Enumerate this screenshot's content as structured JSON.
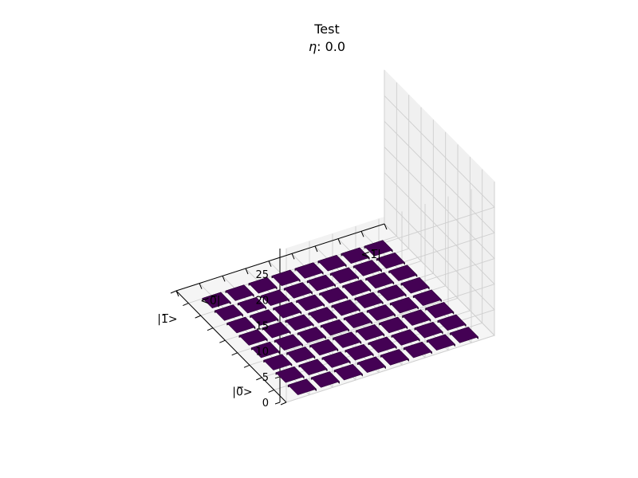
{
  "chart_data": {
    "type": "bar3d",
    "title": "Test",
    "subtitle_symbol": "η",
    "subtitle_rest": ": 0.0",
    "z_ticks": [
      "0",
      "5",
      "10",
      "15",
      "20",
      "25"
    ],
    "zlim": [
      0,
      28
    ],
    "row_labels": [
      "|0̅>",
      "|1̅>"
    ],
    "col_labels": [
      "<0̅|",
      "<1̅|"
    ],
    "grid": true,
    "colormap": "viridis",
    "bar_color": "#440154",
    "bar_value": 0.4,
    "matrix_size": 8,
    "bars": [
      {
        "row": 0,
        "col": 0,
        "z": 0.4
      },
      {
        "row": 0,
        "col": 1,
        "z": 0.4
      },
      {
        "row": 0,
        "col": 2,
        "z": 0.4
      },
      {
        "row": 0,
        "col": 3,
        "z": 0.4
      },
      {
        "row": 0,
        "col": 4,
        "z": 0.4
      },
      {
        "row": 0,
        "col": 5,
        "z": 0.4
      },
      {
        "row": 0,
        "col": 6,
        "z": 0.4
      },
      {
        "row": 0,
        "col": 7,
        "z": 0.4
      },
      {
        "row": 1,
        "col": 0,
        "z": 0.4
      },
      {
        "row": 1,
        "col": 1,
        "z": 0.4
      },
      {
        "row": 1,
        "col": 2,
        "z": 0.4
      },
      {
        "row": 1,
        "col": 3,
        "z": 0.4
      },
      {
        "row": 1,
        "col": 4,
        "z": 0.4
      },
      {
        "row": 1,
        "col": 5,
        "z": 0.4
      },
      {
        "row": 1,
        "col": 6,
        "z": 0.4
      },
      {
        "row": 1,
        "col": 7,
        "z": 0.4
      },
      {
        "row": 2,
        "col": 0,
        "z": 0.4
      },
      {
        "row": 2,
        "col": 1,
        "z": 0.4
      },
      {
        "row": 2,
        "col": 2,
        "z": 0.4
      },
      {
        "row": 2,
        "col": 3,
        "z": 0.4
      },
      {
        "row": 2,
        "col": 4,
        "z": 0.4
      },
      {
        "row": 2,
        "col": 5,
        "z": 0.4
      },
      {
        "row": 2,
        "col": 6,
        "z": 0.4
      },
      {
        "row": 2,
        "col": 7,
        "z": 0.4
      },
      {
        "row": 3,
        "col": 0,
        "z": 0.4
      },
      {
        "row": 3,
        "col": 1,
        "z": 0.4
      },
      {
        "row": 3,
        "col": 2,
        "z": 0.4
      },
      {
        "row": 3,
        "col": 3,
        "z": 0.4
      },
      {
        "row": 3,
        "col": 4,
        "z": 0.4
      },
      {
        "row": 3,
        "col": 5,
        "z": 0.4
      },
      {
        "row": 3,
        "col": 6,
        "z": 0.4
      },
      {
        "row": 3,
        "col": 7,
        "z": 0.4
      },
      {
        "row": 4,
        "col": 0,
        "z": 0.4
      },
      {
        "row": 4,
        "col": 1,
        "z": 0.4
      },
      {
        "row": 4,
        "col": 2,
        "z": 0.4
      },
      {
        "row": 4,
        "col": 3,
        "z": 0.4
      },
      {
        "row": 4,
        "col": 4,
        "z": 0.4
      },
      {
        "row": 4,
        "col": 5,
        "z": 0.4
      },
      {
        "row": 4,
        "col": 6,
        "z": 0.4
      },
      {
        "row": 4,
        "col": 7,
        "z": 0.4
      },
      {
        "row": 5,
        "col": 0,
        "z": 0.4
      },
      {
        "row": 5,
        "col": 1,
        "z": 0.4
      },
      {
        "row": 5,
        "col": 2,
        "z": 0.4
      },
      {
        "row": 5,
        "col": 3,
        "z": 0.4
      },
      {
        "row": 5,
        "col": 4,
        "z": 0.4
      },
      {
        "row": 5,
        "col": 5,
        "z": 0.4
      },
      {
        "row": 5,
        "col": 6,
        "z": 0.4
      },
      {
        "row": 5,
        "col": 7,
        "z": 0.4
      },
      {
        "row": 6,
        "col": 0,
        "z": 0.4
      },
      {
        "row": 6,
        "col": 1,
        "z": 0.4
      },
      {
        "row": 6,
        "col": 2,
        "z": 0.4
      },
      {
        "row": 6,
        "col": 3,
        "z": 0.4
      },
      {
        "row": 6,
        "col": 4,
        "z": 0.4
      },
      {
        "row": 6,
        "col": 5,
        "z": 0.4
      },
      {
        "row": 6,
        "col": 6,
        "z": 0.4
      },
      {
        "row": 6,
        "col": 7,
        "z": 0.4
      },
      {
        "row": 7,
        "col": 0,
        "z": 0.4
      },
      {
        "row": 7,
        "col": 1,
        "z": 0.4
      },
      {
        "row": 7,
        "col": 2,
        "z": 0.4
      },
      {
        "row": 7,
        "col": 3,
        "z": 0.4
      },
      {
        "row": 7,
        "col": 4,
        "z": 0.4
      },
      {
        "row": 7,
        "col": 5,
        "z": 0.4
      },
      {
        "row": 7,
        "col": 6,
        "z": 0.4
      },
      {
        "row": 7,
        "col": 7,
        "z": 0.4
      }
    ]
  }
}
